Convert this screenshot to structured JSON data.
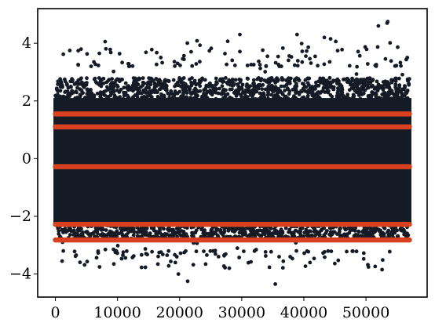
{
  "chart_data": {
    "type": "scatter",
    "title": "",
    "xlabel": "",
    "ylabel": "",
    "xlim": [
      -2850,
      59850
    ],
    "ylim": [
      -4.8,
      5.2
    ],
    "x_ticks": [
      0,
      10000,
      20000,
      30000,
      40000,
      50000
    ],
    "x_tick_labels": [
      "0",
      "10000",
      "20000",
      "30000",
      "40000",
      "50000"
    ],
    "y_ticks": [
      -4,
      -2,
      0,
      2,
      4
    ],
    "y_tick_labels": [
      "−4",
      "−2",
      "0",
      "2",
      "4"
    ],
    "grid": false,
    "legend": "none",
    "series": [
      {
        "role": "scatter-cloud",
        "color": "#141b26",
        "x_range": [
          0,
          57000
        ],
        "core_band": [
          -2.3,
          2.1
        ],
        "max_outliers": [
          4.75,
          4.7,
          4.6,
          4.3,
          4.3,
          4.2,
          4.15
        ],
        "min_outliers": [
          -4.35,
          -4.25,
          -4.0,
          -3.85,
          -3.8
        ]
      },
      {
        "role": "horizontal-bands",
        "color": "#d8401f",
        "x_range": [
          0,
          57000
        ],
        "levels": [
          1.55,
          1.1,
          -0.28,
          -2.28,
          -2.82
        ]
      }
    ],
    "outliers": [
      {
        "x": 53500,
        "y": 4.75
      },
      {
        "x": 53400,
        "y": 4.7
      },
      {
        "x": 52000,
        "y": 4.6
      },
      {
        "x": 29700,
        "y": 4.3
      },
      {
        "x": 38900,
        "y": 4.3
      },
      {
        "x": 43300,
        "y": 4.2
      },
      {
        "x": 44300,
        "y": 4.15
      },
      {
        "x": 35400,
        "y": -4.35
      },
      {
        "x": 21300,
        "y": -4.25
      },
      {
        "x": 19800,
        "y": -4.0
      },
      {
        "x": 52600,
        "y": -3.85
      },
      {
        "x": 28000,
        "y": -3.8
      }
    ]
  },
  "colors": {
    "points": "#141b26",
    "bands": "#d8401f",
    "axes": "#000000",
    "background": "#ffffff"
  }
}
